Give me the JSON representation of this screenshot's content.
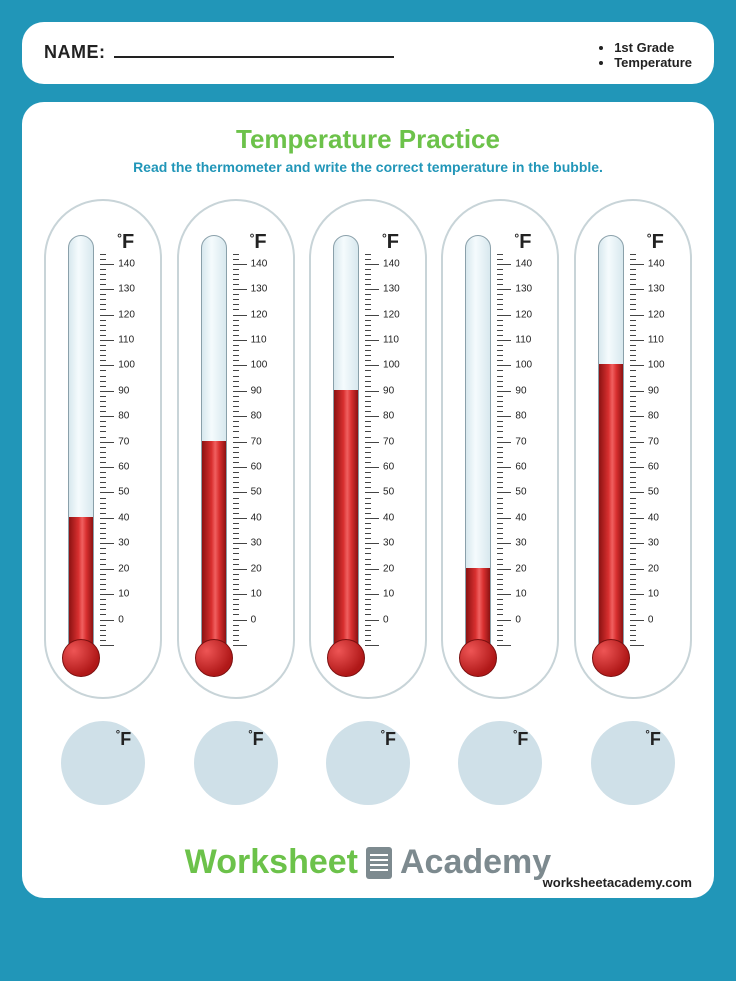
{
  "header": {
    "name_label": "NAME:",
    "tags": [
      "1st Grade",
      "Temperature"
    ]
  },
  "worksheet": {
    "title": "Temperature Practice",
    "instruction": "Read the thermometer and write the correct temperature in the bubble.",
    "unit_label": "F",
    "degree_symbol": "°",
    "scale": {
      "min": -10,
      "max": 145,
      "major_step": 10,
      "minor_per_major": 5,
      "labels": [
        140,
        130,
        120,
        110,
        100,
        90,
        80,
        70,
        60,
        50,
        40,
        30,
        20,
        10,
        0
      ]
    },
    "thermometers": [
      {
        "value": 40
      },
      {
        "value": 70
      },
      {
        "value": 90
      },
      {
        "value": 20
      },
      {
        "value": 100
      }
    ],
    "colors": {
      "page_bg": "#2196b8",
      "card_bg": "#ffffff",
      "title_color": "#6cc24a",
      "instruction_color": "#2196b8",
      "bubble_bg": "#cfe0e8",
      "fluid_color": "#c72020",
      "capsule_border": "#c8d4d8"
    }
  },
  "footer": {
    "brand_word1": "Worksheet",
    "brand_word2": "Academy",
    "url": "worksheetacademy.com"
  }
}
